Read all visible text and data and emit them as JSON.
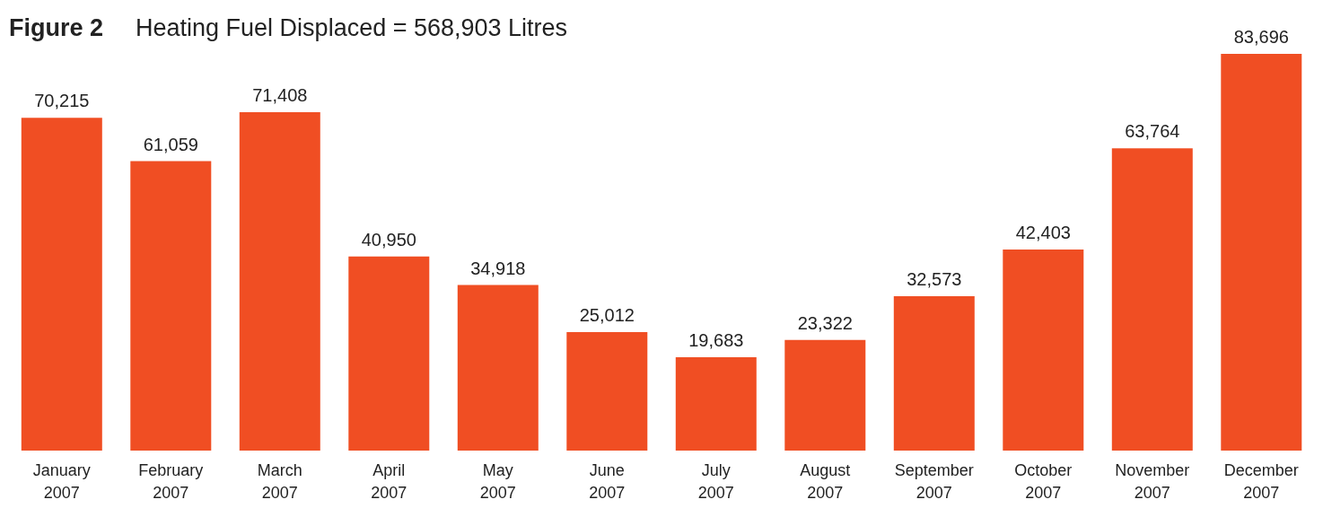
{
  "chart_data": {
    "type": "bar",
    "title": "Figure 2",
    "subtitle": "Heating Fuel Displaced = 568,903 Litres",
    "categories": [
      "January 2007",
      "February 2007",
      "March 2007",
      "April 2007",
      "May 2007",
      "June 2007",
      "July 2007",
      "August 2007",
      "September 2007",
      "October 2007",
      "November 2007",
      "December 2007"
    ],
    "values": [
      70215,
      61059,
      71408,
      40950,
      34918,
      25012,
      19683,
      23322,
      32573,
      42403,
      63764,
      83696
    ],
    "value_labels": [
      "70,215",
      "61,059",
      "71,408",
      "40,950",
      "34,918",
      "25,012",
      "19,683",
      "23,322",
      "32,573",
      "42,403",
      "63,764",
      "83,696"
    ],
    "color": "#f04e23",
    "tick_labels": "x"
  }
}
